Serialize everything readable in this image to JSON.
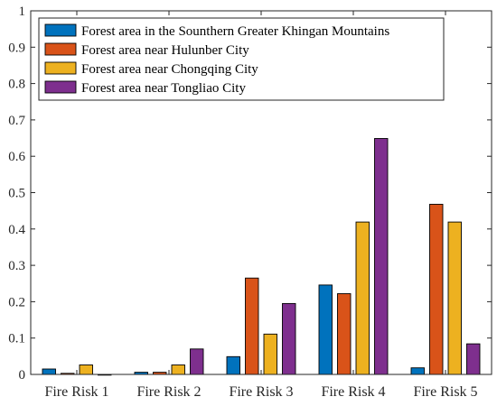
{
  "chart_data": {
    "type": "bar",
    "categories": [
      "Fire Risk 1",
      "Fire Risk 2",
      "Fire Risk 3",
      "Fire Risk 4",
      "Fire Risk 5"
    ],
    "series": [
      {
        "name": "Forest area in the Sounthern Greater Khingan Mountains",
        "color": "#0072bd",
        "values": [
          0.015,
          0.006,
          0.049,
          0.246,
          0.018
        ]
      },
      {
        "name": "Forest area near Hulunber City",
        "color": "#d95319",
        "values": [
          0.003,
          0.006,
          0.265,
          0.222,
          0.468
        ]
      },
      {
        "name": "Forest area near Chongqing City",
        "color": "#edb120",
        "values": [
          0.026,
          0.026,
          0.111,
          0.419,
          0.419
        ]
      },
      {
        "name": "Forest area near Tongliao City",
        "color": "#7e2f8e",
        "values": [
          0.0,
          0.07,
          0.195,
          0.649,
          0.084
        ]
      }
    ],
    "ylim": [
      0,
      1
    ],
    "yticks": [
      "0",
      "0.1",
      "0.2",
      "0.3",
      "0.4",
      "0.5",
      "0.6",
      "0.7",
      "0.8",
      "0.9",
      "1"
    ],
    "grid": false,
    "legend_position": "top-left"
  }
}
